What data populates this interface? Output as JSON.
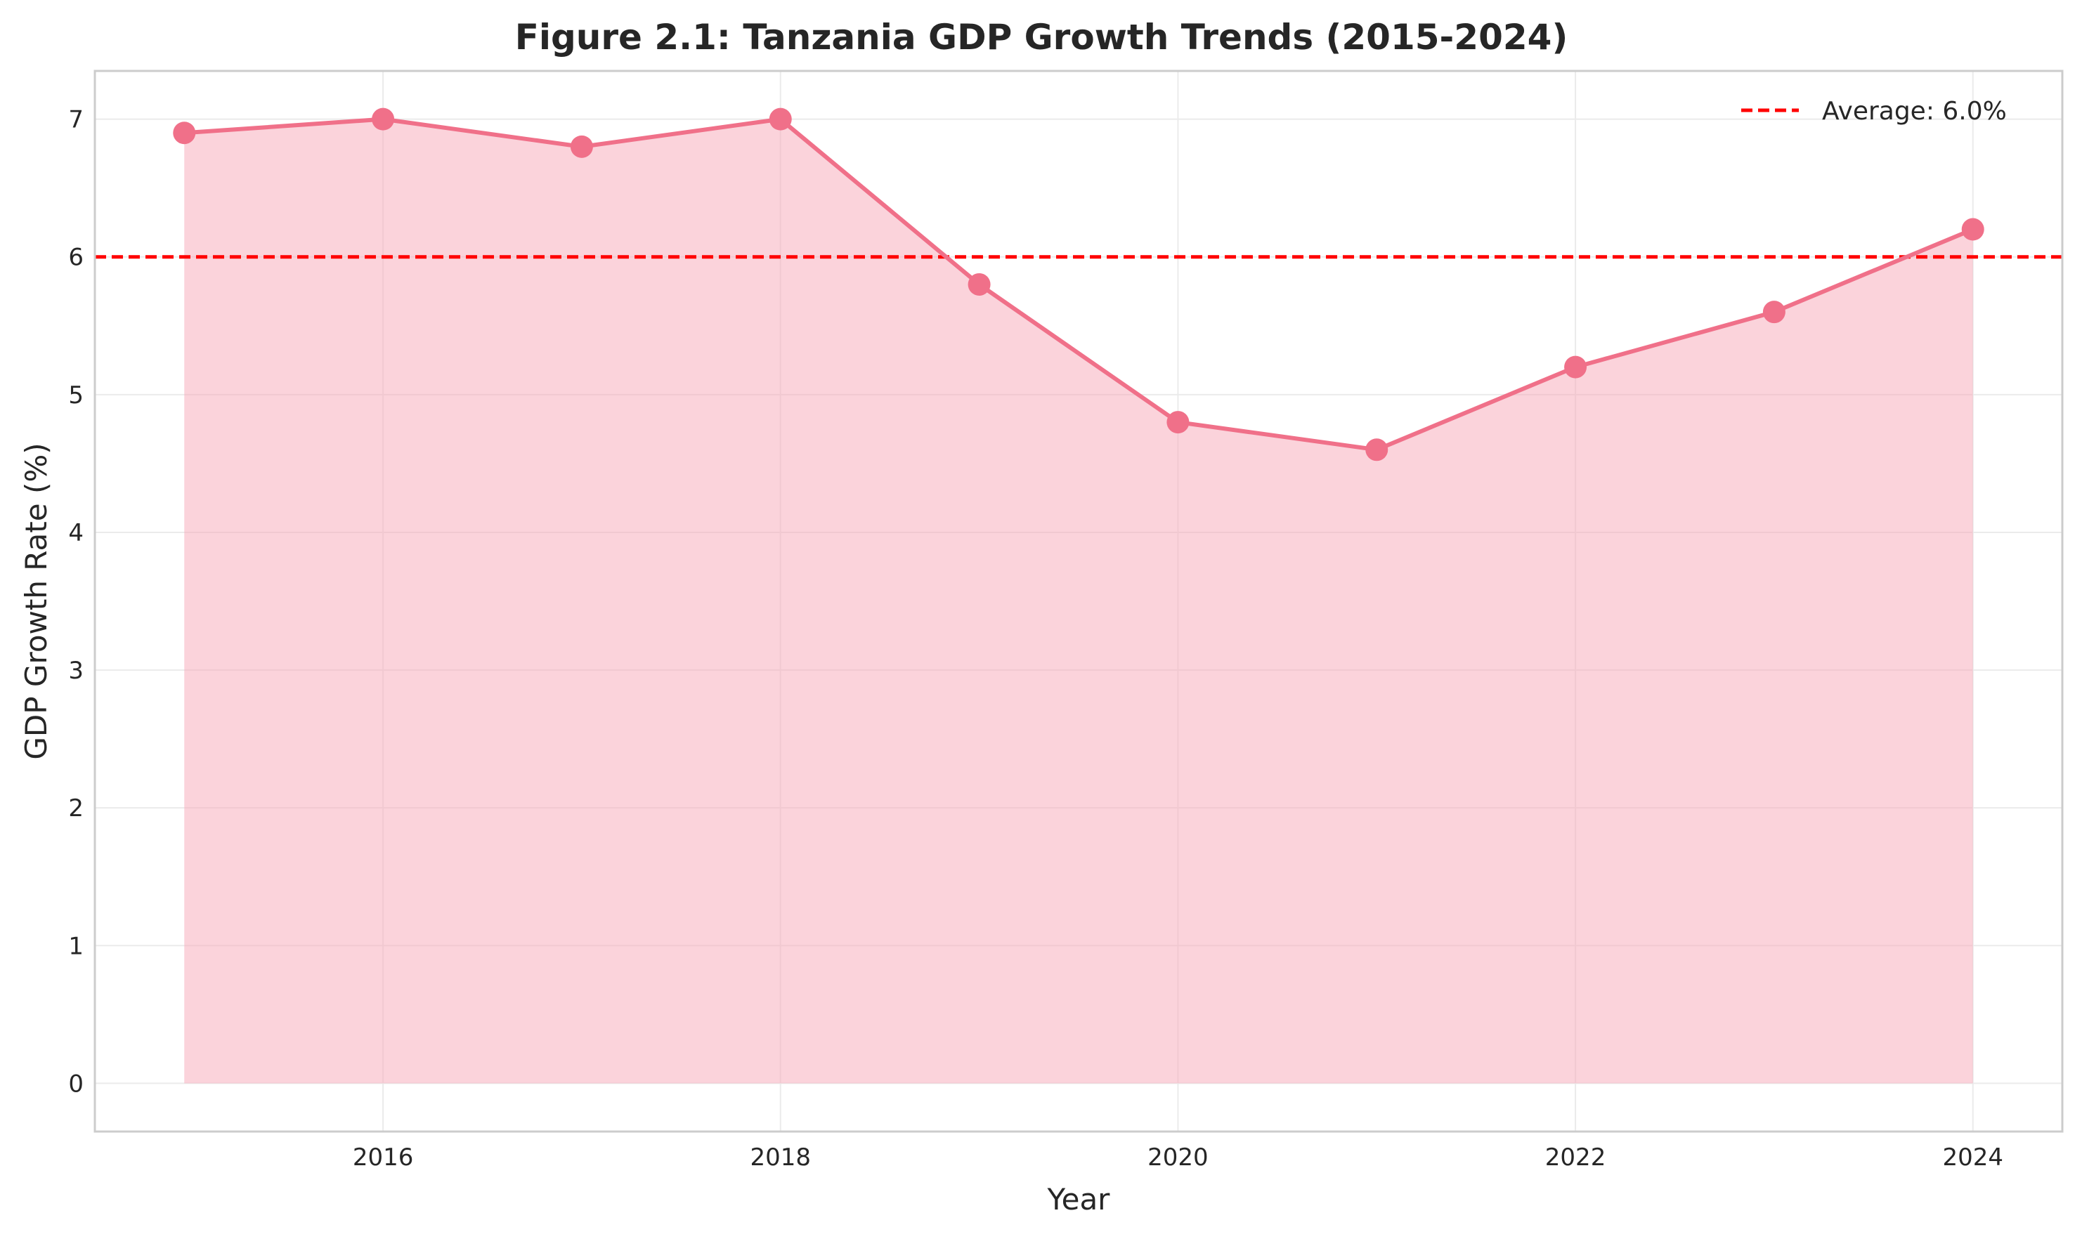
{
  "chart_data": {
    "type": "area",
    "title": "Figure 2.1: Tanzania GDP Growth Trends (2015-2024)",
    "xlabel": "Year",
    "ylabel": "GDP Growth Rate (%)",
    "xlim": [
      2014.55,
      2024.45
    ],
    "ylim": [
      -0.35,
      7.35
    ],
    "x_ticks": [
      2016,
      2018,
      2020,
      2022,
      2024
    ],
    "y_ticks": [
      0,
      1,
      2,
      3,
      4,
      5,
      6,
      7
    ],
    "grid": true,
    "legend_position": "top-right",
    "series": [
      {
        "x": [
          2015,
          2016,
          2017,
          2018,
          2019,
          2020,
          2021,
          2022,
          2023,
          2024
        ],
        "values": [
          6.9,
          7.0,
          6.8,
          7.0,
          5.8,
          4.8,
          4.6,
          5.2,
          5.6,
          6.2
        ],
        "color": "#f07089",
        "fill_color": "#f7a8b8",
        "markers": true
      }
    ],
    "reference_lines": [
      {
        "y": 6.0,
        "label": "Average: 6.0%",
        "color": "#ff0000",
        "style": "dashed"
      }
    ]
  }
}
